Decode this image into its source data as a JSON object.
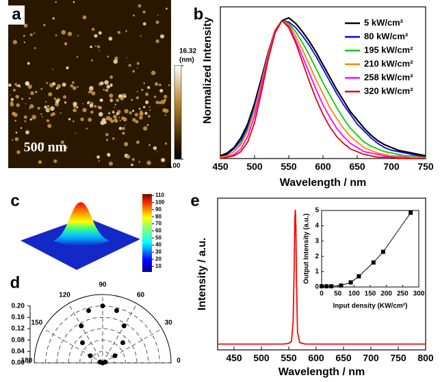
{
  "afm_image": {
    "panel": "a",
    "scale_bar": "500 nm",
    "colorbar_unit": "(nm)",
    "colorbar_ticks": [
      {
        "value": 0,
        "label": "0.00"
      },
      16.32
    ],
    "clim": [
      0,
      16.32
    ]
  },
  "chart_data": [
    {
      "type": "line",
      "panel": "b",
      "x_label": "Wavelength / nm",
      "y_label": "Normalized Intensity",
      "x": [
        450,
        460,
        470,
        480,
        490,
        500,
        510,
        520,
        530,
        540,
        550,
        560,
        570,
        580,
        590,
        600,
        610,
        620,
        630,
        640,
        650,
        660,
        670,
        680,
        690,
        700,
        710,
        720,
        730,
        740,
        750
      ],
      "xlim": [
        450,
        750
      ],
      "xticks": [
        450,
        500,
        550,
        600,
        650,
        700,
        750
      ],
      "ylim": [
        0,
        1.1
      ],
      "legend": "upper right",
      "series": [
        {
          "name": "5 kW/cm²",
          "color": "#000000",
          "values": [
            0.02,
            0.04,
            0.08,
            0.15,
            0.25,
            0.4,
            0.58,
            0.77,
            0.93,
            1.0,
            1.02,
            0.98,
            0.92,
            0.85,
            0.77,
            0.68,
            0.59,
            0.5,
            0.42,
            0.34,
            0.28,
            0.22,
            0.17,
            0.13,
            0.1,
            0.08,
            0.06,
            0.05,
            0.04,
            0.03,
            0.02
          ]
        },
        {
          "name": "80 kW/cm²",
          "color": "#0000ff",
          "values": [
            0.01,
            0.03,
            0.07,
            0.13,
            0.23,
            0.38,
            0.56,
            0.76,
            0.92,
            1.0,
            0.99,
            0.95,
            0.89,
            0.82,
            0.74,
            0.65,
            0.56,
            0.47,
            0.39,
            0.32,
            0.25,
            0.2,
            0.15,
            0.11,
            0.08,
            0.06,
            0.05,
            0.04,
            0.03,
            0.02,
            0.01
          ]
        },
        {
          "name": "195 kW/cm²",
          "color": "#00cc00",
          "values": [
            0.01,
            0.02,
            0.05,
            0.11,
            0.21,
            0.36,
            0.55,
            0.75,
            0.92,
            1.0,
            0.98,
            0.92,
            0.84,
            0.75,
            0.65,
            0.55,
            0.46,
            0.37,
            0.29,
            0.22,
            0.17,
            0.12,
            0.09,
            0.07,
            0.05,
            0.04,
            0.03,
            0.02,
            0.02,
            0.01,
            0.01
          ]
        },
        {
          "name": "210 kW/cm²",
          "color": "#ff8000",
          "values": [
            0.01,
            0.02,
            0.05,
            0.1,
            0.2,
            0.35,
            0.55,
            0.76,
            0.93,
            1.0,
            0.97,
            0.89,
            0.79,
            0.68,
            0.57,
            0.47,
            0.37,
            0.29,
            0.22,
            0.16,
            0.12,
            0.08,
            0.06,
            0.04,
            0.03,
            0.02,
            0.02,
            0.01,
            0.01,
            0.01,
            0.0
          ]
        },
        {
          "name": "258 kW/cm²",
          "color": "#ff00ff",
          "values": [
            0.0,
            0.01,
            0.03,
            0.07,
            0.16,
            0.31,
            0.52,
            0.74,
            0.92,
            1.0,
            0.96,
            0.86,
            0.74,
            0.62,
            0.5,
            0.39,
            0.3,
            0.22,
            0.16,
            0.11,
            0.08,
            0.05,
            0.04,
            0.03,
            0.02,
            0.01,
            0.01,
            0.01,
            0.0,
            0.0,
            0.0
          ]
        },
        {
          "name": "320 kW/cm²",
          "color": "#e00000",
          "values": [
            0.0,
            0.01,
            0.02,
            0.05,
            0.12,
            0.26,
            0.48,
            0.72,
            0.91,
            1.0,
            0.95,
            0.84,
            0.7,
            0.56,
            0.43,
            0.32,
            0.23,
            0.16,
            0.11,
            0.07,
            0.05,
            0.03,
            0.02,
            0.01,
            0.01,
            0.01,
            0.0,
            0.0,
            0.0,
            0.0,
            0.0
          ]
        }
      ]
    },
    {
      "type": "surface3d",
      "panel": "c",
      "clim": [
        2,
        112
      ],
      "colorbar_ticks": [
        10,
        20,
        30,
        40,
        50,
        60,
        70,
        80,
        90,
        100,
        110
      ]
    },
    {
      "type": "polar",
      "panel": "d",
      "theta": [
        0,
        15,
        30,
        45,
        60,
        75,
        90,
        105,
        120,
        135,
        150,
        165,
        180
      ],
      "values": [
        0.0,
        0.01,
        0.05,
        0.1,
        0.15,
        0.19,
        0.2,
        0.19,
        0.15,
        0.1,
        0.05,
        0.01,
        0.0
      ],
      "rlim": [
        0,
        0.24
      ],
      "rticks": [
        {
          "value": 0,
          "label": "0.00"
        },
        0.04,
        0.08,
        0.12,
        0.16,
        {
          "value": 0.2,
          "label": "0.20"
        }
      ],
      "thetaticks": [
        0,
        30,
        60,
        90,
        120,
        150,
        180
      ]
    },
    {
      "type": "line",
      "panel": "e",
      "x_label": "Wavelength / nm",
      "y_label": "Intensity / a.u.",
      "x": [
        420,
        500,
        540,
        550,
        555,
        558,
        560,
        561,
        562,
        563,
        564,
        566,
        570,
        580,
        620,
        700,
        800
      ],
      "xlim": [
        420,
        800
      ],
      "xticks": [
        450,
        500,
        550,
        600,
        650,
        700,
        750,
        800
      ],
      "ylim": [
        0,
        1.05
      ],
      "series": [
        {
          "color": "#ff0000",
          "values": [
            0.04,
            0.04,
            0.04,
            0.045,
            0.06,
            0.2,
            0.6,
            0.9,
            0.97,
            0.85,
            0.5,
            0.12,
            0.05,
            0.04,
            0.04,
            0.04,
            0.04
          ]
        }
      ],
      "inset": {
        "type": "scatter",
        "x_label": "Input density (KW/cm²)",
        "y_label": "Output Intensity (a.u.)",
        "x": [
          0,
          15,
          30,
          60,
          90,
          115,
          160,
          190,
          275
        ],
        "values": [
          0.05,
          0.05,
          0.05,
          0.1,
          0.3,
          0.7,
          1.6,
          2.3,
          4.85
        ],
        "xlim": [
          0,
          300
        ],
        "xticks": [
          0,
          50,
          100,
          150,
          200,
          250,
          300
        ],
        "ylim": [
          0,
          5
        ],
        "yticks": [
          0,
          1,
          2,
          3,
          4,
          5
        ],
        "color": "#000000"
      }
    }
  ]
}
